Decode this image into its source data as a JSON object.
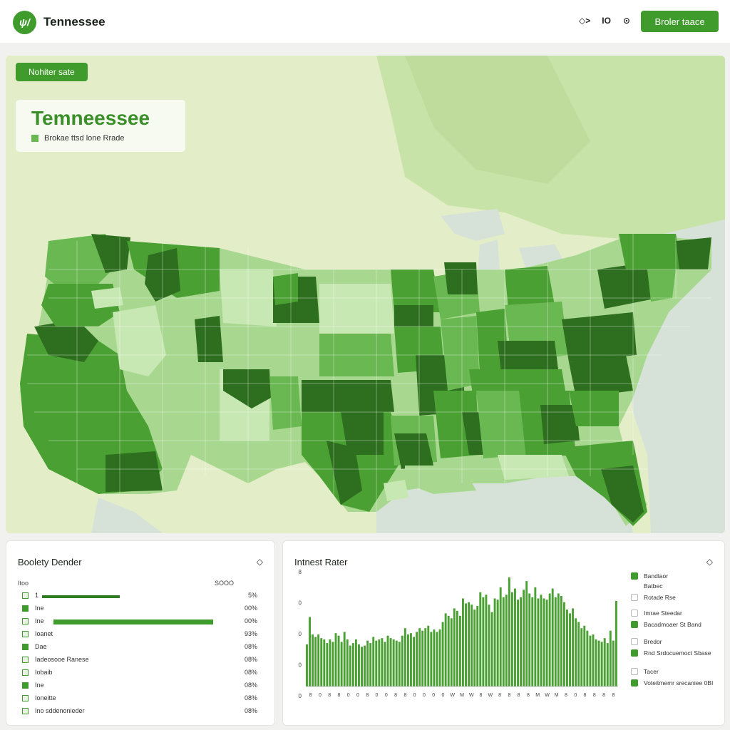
{
  "header": {
    "logo_text": "ψ/",
    "app_title": "Tennessee",
    "icons": [
      "◇>",
      "IO",
      "⊙"
    ],
    "button_label": "Broler taace"
  },
  "map": {
    "badge": "Nohiter sate",
    "title": "Temneessee",
    "legend_label": "Brokae ttsd lone Rrade",
    "colors": {
      "land_light": "#e3edc8",
      "water": "#d6e2d8",
      "light": "#a8d88f",
      "mid": "#6ab852",
      "strong": "#4aa033",
      "dark": "#2d6e1f"
    }
  },
  "left_panel": {
    "title": "Boolety Dender",
    "col_head_left": "Itoo",
    "col_head_right": "SOOO",
    "rows": [
      {
        "label": "1",
        "value": "5%",
        "fill": 0.42,
        "style": "line"
      },
      {
        "label": "Ine",
        "value": "00%",
        "fill": 0,
        "style": "none"
      },
      {
        "label": "Ine",
        "value": "00%",
        "fill": 0.86,
        "style": "bar"
      },
      {
        "label": "Ioanet",
        "value": "93%",
        "fill": 0,
        "style": "none"
      },
      {
        "label": "Dae",
        "value": "08%",
        "fill": 0,
        "style": "none"
      },
      {
        "label": "Iadeosooe Ranese",
        "value": "08%",
        "fill": 0,
        "style": "none"
      },
      {
        "label": "Iobaib",
        "value": "08%",
        "fill": 0,
        "style": "none"
      },
      {
        "label": "Ine",
        "value": "08%",
        "fill": 0,
        "style": "none"
      },
      {
        "label": "Ioneitte",
        "value": "08%",
        "fill": 0,
        "style": "none"
      },
      {
        "label": "Ino sddenonieder",
        "value": "08%",
        "fill": 0,
        "style": "none"
      }
    ]
  },
  "right_panel": {
    "title": "Intnest Rater",
    "chart_data": {
      "type": "bar",
      "ytick_labels": [
        "8",
        "0",
        "0",
        "0",
        "0"
      ],
      "xtick_labels": [
        "8",
        "0",
        "8",
        "8",
        "0",
        "0",
        "8",
        "0",
        "0",
        "8",
        "8",
        "0",
        "0",
        "0",
        "0",
        "W",
        "M",
        "W",
        "8",
        "W",
        "8",
        "8",
        "8",
        "8",
        "M",
        "W",
        "M",
        "8",
        "0",
        "8",
        "8",
        "8",
        "8"
      ],
      "values": [
        34,
        56,
        42,
        40,
        42,
        39,
        38,
        35,
        38,
        36,
        43,
        41,
        36,
        44,
        38,
        33,
        35,
        38,
        34,
        32,
        33,
        37,
        35,
        40,
        37,
        38,
        39,
        36,
        41,
        39,
        38,
        37,
        36,
        41,
        47,
        42,
        43,
        40,
        44,
        47,
        45,
        47,
        49,
        44,
        46,
        44,
        46,
        52,
        59,
        57,
        55,
        63,
        61,
        57,
        71,
        67,
        68,
        66,
        62,
        65,
        76,
        72,
        74,
        66,
        60,
        71,
        70,
        80,
        72,
        74,
        88,
        76,
        79,
        70,
        72,
        78,
        85,
        75,
        72,
        80,
        71,
        74,
        71,
        70,
        75,
        79,
        72,
        75,
        73,
        68,
        62,
        59,
        63,
        55,
        52,
        47,
        49,
        45,
        41,
        42,
        38,
        37,
        36,
        39,
        35,
        45,
        37,
        69
      ],
      "ylim": [
        0,
        100
      ]
    },
    "legend": [
      {
        "label": "Bandlaor",
        "style": "filled"
      },
      {
        "label": "Batbec",
        "style": "none"
      },
      {
        "label": "Rotade Rse",
        "style": "empty"
      },
      {
        "label": "Imrae Steedar",
        "style": "empty"
      },
      {
        "label": "Bacadmoaer St Band",
        "style": "filled"
      },
      {
        "label": "Bredor",
        "style": "empty"
      },
      {
        "label": "Rnd Srdocuemoct Sbase",
        "style": "filled"
      },
      {
        "label": "Tacer",
        "style": "empty"
      },
      {
        "label": "Voteitmemr srecaniee 0BI",
        "style": "filled"
      }
    ]
  }
}
